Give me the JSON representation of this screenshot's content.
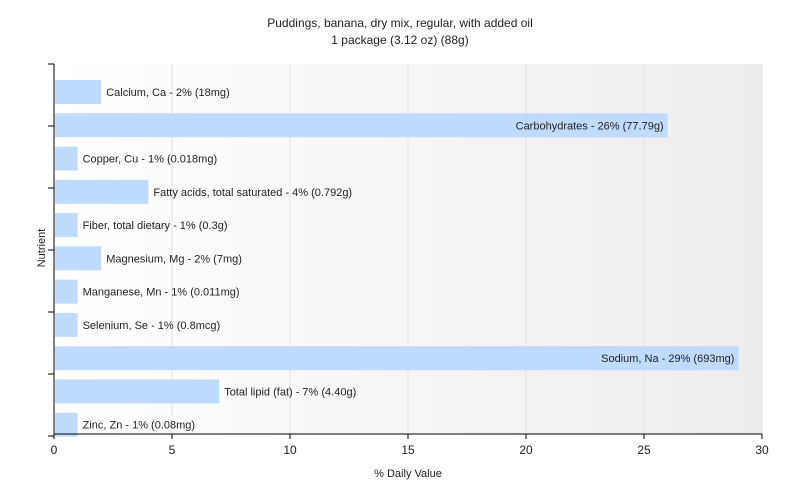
{
  "chart_data": {
    "type": "bar",
    "orientation": "horizontal",
    "title": "Puddings, banana, dry mix, regular, with added oil",
    "subtitle": "1 package (3.12 oz) (88g)",
    "xlabel": "% Daily Value",
    "ylabel": "Nutrient",
    "xlim": [
      0,
      30
    ],
    "xticks": [
      0,
      5,
      10,
      15,
      20,
      25,
      30
    ],
    "grid": "vertical",
    "bar_color": "#bfdbff",
    "categories": [
      "Calcium, Ca",
      "Carbohydrates",
      "Copper, Cu",
      "Fatty acids, total saturated",
      "Fiber, total dietary",
      "Magnesium, Mg",
      "Manganese, Mn",
      "Selenium, Se",
      "Sodium, Na",
      "Total lipid (fat)",
      "Zinc, Zn"
    ],
    "values": [
      2,
      26,
      1,
      4,
      1,
      2,
      1,
      1,
      29,
      7,
      1
    ],
    "labels": [
      "Calcium, Ca - 2% (18mg)",
      "Carbohydrates - 26% (77.79g)",
      "Copper, Cu - 1% (0.018mg)",
      "Fatty acids, total saturated - 4% (0.792g)",
      "Fiber, total dietary - 1% (0.3g)",
      "Magnesium, Mg - 2% (7mg)",
      "Manganese, Mn - 1% (0.011mg)",
      "Selenium, Se - 1% (0.8mcg)",
      "Sodium, Na - 29% (693mg)",
      "Total lipid (fat) - 7% (4.40g)",
      "Zinc, Zn - 1% (0.08mg)"
    ]
  }
}
